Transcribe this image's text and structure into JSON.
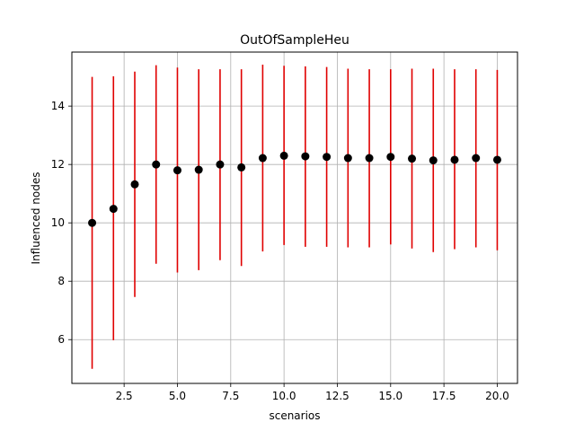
{
  "chart_data": {
    "type": "scatter",
    "title": "OutOfSampleHeu",
    "xlabel": "scenarios",
    "ylabel": "Influenced nodes",
    "xlim": [
      0.05,
      20.95
    ],
    "ylim": [
      4.5,
      15.85
    ],
    "x_ticks": [
      2.5,
      5.0,
      7.5,
      10.0,
      12.5,
      15.0,
      17.5,
      20.0
    ],
    "x_tick_labels": [
      "2.5",
      "5.0",
      "7.5",
      "10.0",
      "12.5",
      "15.0",
      "17.5",
      "20.0"
    ],
    "y_ticks": [
      6,
      8,
      10,
      12,
      14
    ],
    "y_tick_labels": [
      "6",
      "8",
      "10",
      "12",
      "14"
    ],
    "grid": true,
    "legend": "none",
    "colors": {
      "point": "#000000",
      "errorbar": "#e00000",
      "grid": "#b0b0b0"
    },
    "series": [
      {
        "x": [
          1,
          2,
          3,
          4,
          5,
          6,
          7,
          8,
          9,
          10,
          11,
          12,
          13,
          14,
          15,
          16,
          17,
          18,
          19,
          20
        ],
        "y": [
          10.0,
          10.48,
          11.32,
          12.0,
          11.8,
          11.82,
          12.0,
          11.9,
          12.22,
          12.3,
          12.28,
          12.26,
          12.22,
          12.22,
          12.26,
          12.2,
          12.14,
          12.16,
          12.22,
          12.16
        ],
        "y_low": [
          5.0,
          5.98,
          7.46,
          8.6,
          8.3,
          8.38,
          8.72,
          8.52,
          9.02,
          9.24,
          9.18,
          9.18,
          9.16,
          9.16,
          9.26,
          9.12,
          9.0,
          9.1,
          9.16,
          9.06
        ],
        "y_high": [
          15.0,
          15.02,
          15.18,
          15.4,
          15.32,
          15.26,
          15.26,
          15.26,
          15.42,
          15.38,
          15.36,
          15.34,
          15.28,
          15.26,
          15.26,
          15.28,
          15.28,
          15.26,
          15.26,
          15.24
        ]
      }
    ]
  }
}
